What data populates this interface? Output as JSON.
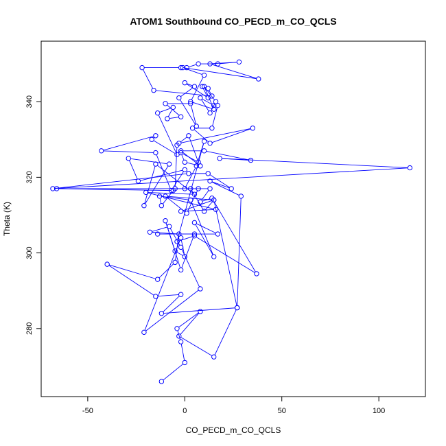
{
  "chart_data": {
    "type": "scatter",
    "title": "ATOM1 Southbound CO_PECD_m_CO_QCLS",
    "xlabel": "CO_PECD_m_CO_QCLS",
    "ylabel": "Theta (K)",
    "xlim": [
      -74,
      124
    ],
    "ylim": [
      262,
      356
    ],
    "xticks": [
      -50,
      0,
      50,
      100
    ],
    "yticks": [
      280,
      300,
      320,
      340
    ],
    "grid": false,
    "legend": "none",
    "series": [
      {
        "color": "#0000ff",
        "marker": "open-circle",
        "connected": true,
        "points": [
          [
            -12,
            266
          ],
          [
            0,
            271
          ],
          [
            -2,
            276.5
          ],
          [
            -4,
            280
          ],
          [
            8,
            284.5
          ],
          [
            -3,
            278
          ],
          [
            15,
            272.5
          ],
          [
            27,
            285.5
          ],
          [
            -12,
            284
          ],
          [
            -2,
            289
          ],
          [
            -15,
            288.5
          ],
          [
            -40,
            297
          ],
          [
            -14,
            293
          ],
          [
            -5,
            297.5
          ],
          [
            -3,
            305
          ],
          [
            -18,
            305.5
          ],
          [
            -8,
            307
          ],
          [
            -2,
            301.5
          ],
          [
            8,
            290.5
          ],
          [
            -21,
            279
          ],
          [
            -2,
            304
          ],
          [
            0,
            299
          ],
          [
            -5,
            300.5
          ],
          [
            -10,
            308.5
          ],
          [
            -2,
            295.5
          ],
          [
            5,
            305
          ],
          [
            -14,
            305
          ],
          [
            17,
            305
          ],
          [
            5,
            308
          ],
          [
            15,
            299
          ],
          [
            3,
            314
          ],
          [
            -13,
            315
          ],
          [
            -12,
            312.5
          ],
          [
            -6,
            316.5
          ],
          [
            -66,
            317
          ],
          [
            7,
            317
          ],
          [
            1,
            310.5
          ],
          [
            -10,
            315
          ],
          [
            15,
            314
          ],
          [
            -2,
            311
          ],
          [
            16,
            311.5
          ],
          [
            -20,
            316
          ],
          [
            5,
            315.5
          ],
          [
            -15,
            323.5
          ],
          [
            -21,
            312.5
          ],
          [
            -8,
            323.5
          ],
          [
            -29,
            325
          ],
          [
            -24,
            319
          ],
          [
            0,
            322
          ],
          [
            -7,
            316.5
          ],
          [
            -15,
            326.5
          ],
          [
            -43,
            327
          ],
          [
            -15,
            331
          ],
          [
            -17,
            330
          ],
          [
            -4,
            326
          ],
          [
            -14,
            337
          ],
          [
            -6,
            338.5
          ],
          [
            -9,
            335.5
          ],
          [
            -2,
            336
          ],
          [
            -10,
            339.5
          ],
          [
            3,
            339.5
          ],
          [
            6,
            333.5
          ],
          [
            -3,
            341
          ],
          [
            5,
            344
          ],
          [
            0,
            345
          ],
          [
            12,
            341
          ],
          [
            9,
            344
          ],
          [
            12,
            343.5
          ],
          [
            14,
            341.5
          ],
          [
            -16,
            343
          ],
          [
            -22,
            349
          ],
          [
            -2,
            349
          ],
          [
            1,
            349
          ],
          [
            7,
            350
          ],
          [
            17,
            350
          ],
          [
            28,
            350.5
          ],
          [
            13,
            350
          ],
          [
            38,
            346
          ],
          [
            -1,
            349
          ],
          [
            10,
            347
          ],
          [
            3,
            340
          ],
          [
            15,
            338
          ],
          [
            10,
            344
          ],
          [
            16,
            340
          ],
          [
            13,
            337
          ],
          [
            8,
            341
          ],
          [
            15,
            339
          ],
          [
            17,
            339
          ],
          [
            14,
            333
          ],
          [
            4,
            333
          ],
          [
            13,
            329
          ],
          [
            35,
            333
          ],
          [
            -3,
            329
          ],
          [
            2,
            331
          ],
          [
            7,
            324
          ],
          [
            -2,
            326.5
          ],
          [
            0,
            324
          ],
          [
            8,
            323
          ],
          [
            -2,
            327
          ],
          [
            10,
            327
          ],
          [
            34,
            324.5
          ],
          [
            18,
            325
          ],
          [
            116,
            322.5
          ],
          [
            -68,
            317
          ],
          [
            2,
            321
          ],
          [
            12,
            321
          ],
          [
            24,
            317
          ],
          [
            13,
            319
          ],
          [
            29,
            315
          ],
          [
            27,
            285.5
          ],
          [
            15,
            314
          ],
          [
            10,
            311
          ],
          [
            3,
            317
          ],
          [
            13,
            317
          ],
          [
            8,
            313.5
          ],
          [
            14,
            314.5
          ],
          [
            37,
            294.5
          ],
          [
            5,
            304.5
          ],
          [
            -4,
            303
          ],
          [
            10,
            329.5
          ],
          [
            6,
            323
          ],
          [
            0,
            317
          ],
          [
            -5,
            317
          ],
          [
            -4,
            328.5
          ]
        ]
      }
    ]
  }
}
